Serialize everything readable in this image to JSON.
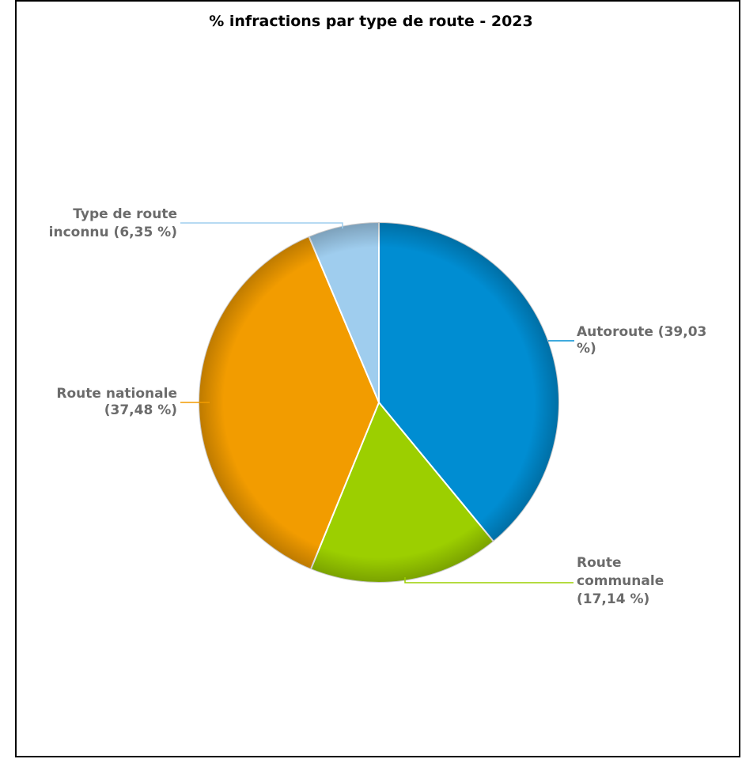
{
  "chart_data": {
    "type": "pie",
    "title": "% infractions par type de route - 2023",
    "slices": [
      {
        "label_lines": [
          "Autoroute (39,03",
          "%)"
        ],
        "value": 39.03,
        "color": "#008dd2"
      },
      {
        "label_lines": [
          "Route",
          "communale",
          "(17,14 %)"
        ],
        "value": 17.14,
        "color": "#9ccf00"
      },
      {
        "label_lines": [
          "Route nationale",
          "(37,48 %)"
        ],
        "value": 37.48,
        "color": "#f29c00"
      },
      {
        "label_lines": [
          "Type de route",
          "inconnu (6,35 %)"
        ],
        "value": 6.35,
        "color": "#9fcdee"
      }
    ]
  }
}
